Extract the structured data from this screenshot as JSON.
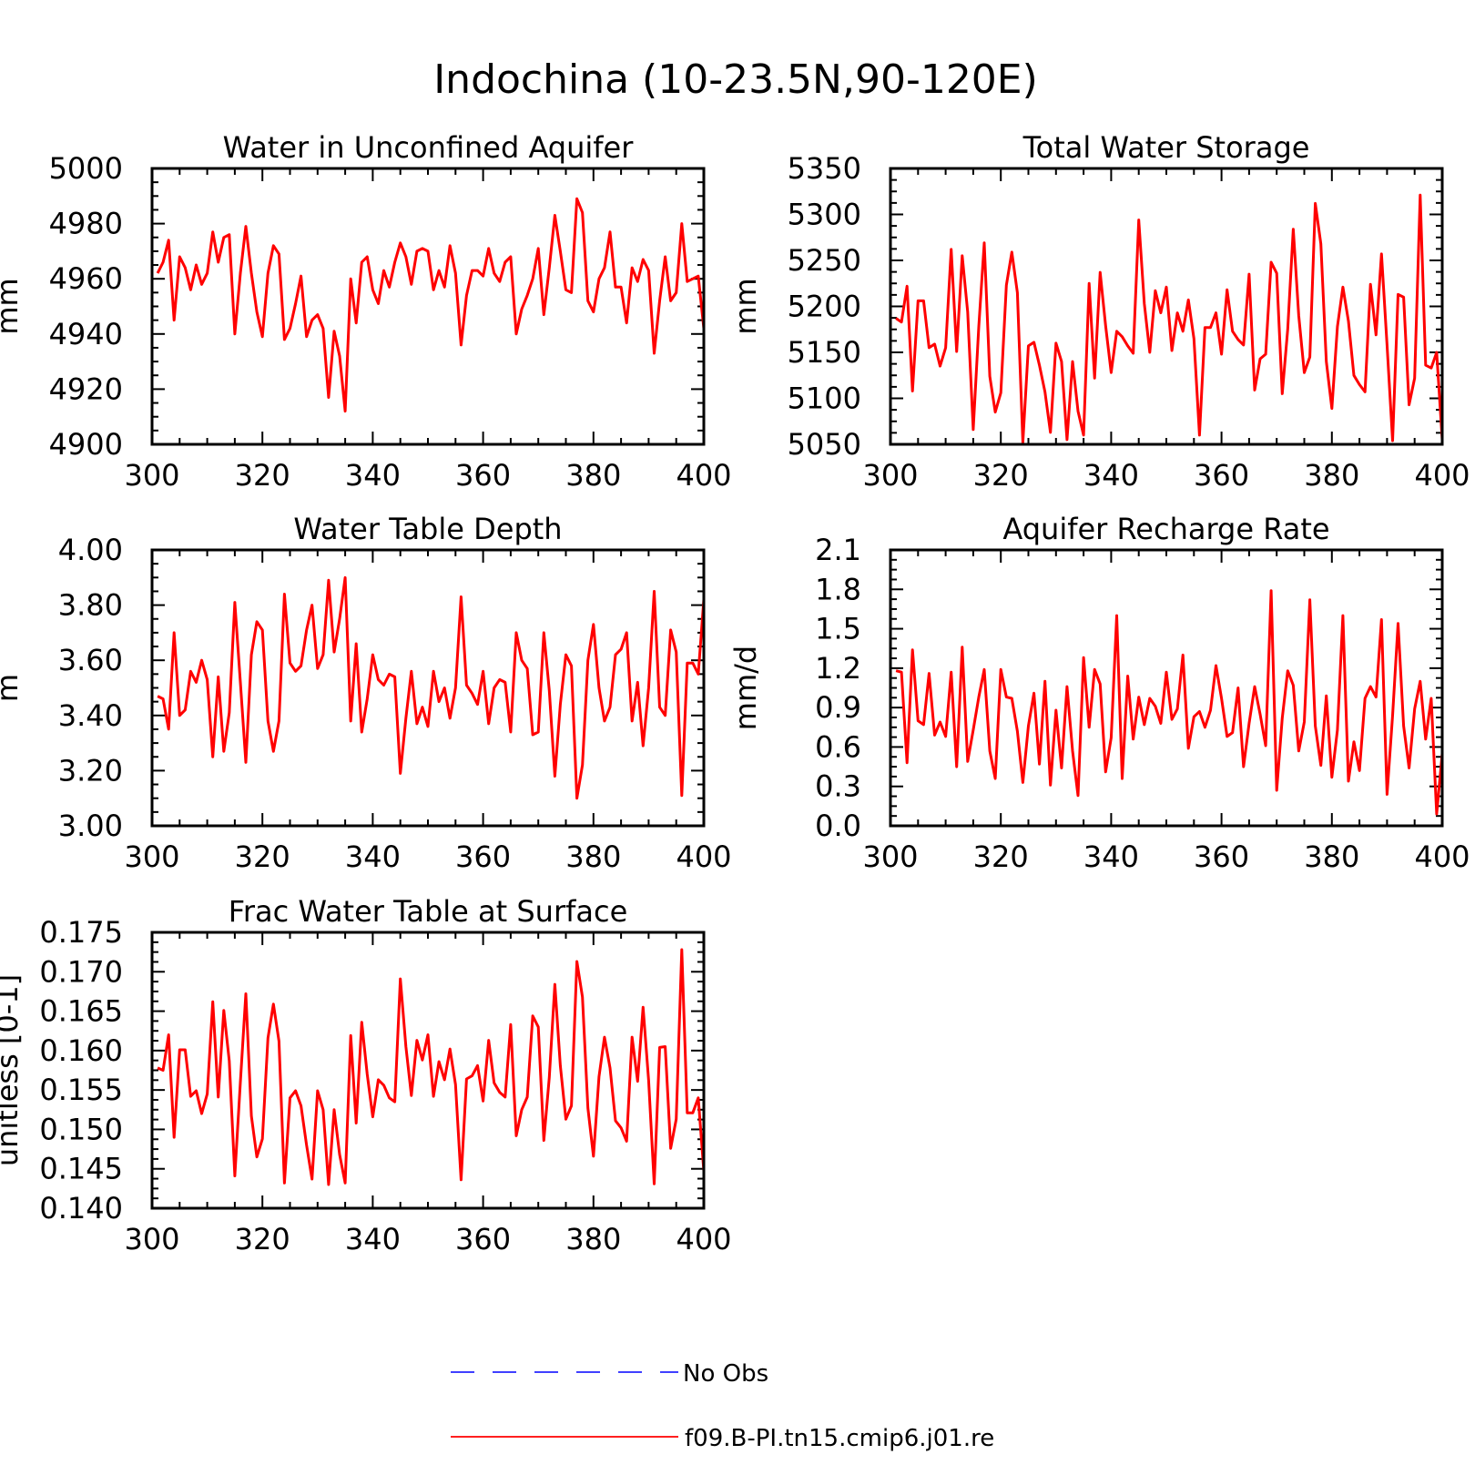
{
  "figure": {
    "title": "Indochina (10-23.5N,90-120E)"
  },
  "legend": {
    "entries": [
      {
        "label": "No Obs",
        "color": "#0000ff",
        "style": "dashed"
      },
      {
        "label": "f09.B-PI.tn15.cmip6.j01.re",
        "color": "#ff0000",
        "style": "solid"
      }
    ]
  },
  "chart_data": [
    {
      "type": "line",
      "title": "Water in Unconfined Aquifer",
      "xlabel": "",
      "ylabel": "mm",
      "xlim": [
        300,
        400
      ],
      "ylim": [
        4900,
        5000
      ],
      "xticks": [
        "300",
        "320",
        "340",
        "360",
        "380",
        "400"
      ],
      "yticks": [
        "4900",
        "4920",
        "4940",
        "4960",
        "4980",
        "5000"
      ],
      "x": [
        301,
        302,
        303,
        304,
        305,
        306,
        307,
        308,
        309,
        310,
        311,
        312,
        313,
        314,
        315,
        316,
        317,
        318,
        319,
        320,
        321,
        322,
        323,
        324,
        325,
        326,
        327,
        328,
        329,
        330,
        331,
        332,
        333,
        334,
        335,
        336,
        337,
        338,
        339,
        340,
        341,
        342,
        343,
        344,
        345,
        346,
        347,
        348,
        349,
        350,
        351,
        352,
        353,
        354,
        355,
        356,
        357,
        358,
        359,
        360,
        361,
        362,
        363,
        364,
        365,
        366,
        367,
        368,
        369,
        370,
        371,
        372,
        373,
        374,
        375,
        376,
        377,
        378,
        379,
        380,
        381,
        382,
        383,
        384,
        385,
        386,
        387,
        388,
        389,
        390,
        391,
        392,
        393,
        394,
        395,
        396,
        397,
        398,
        399,
        400
      ],
      "series": [
        {
          "name": "f09.B-PI.tn15.cmip6.j01.re",
          "color": "#ff0000",
          "values": [
            4962,
            4966,
            4974,
            4945,
            4968,
            4964,
            4956,
            4965,
            4958,
            4962,
            4977,
            4966,
            4975,
            4976,
            4940,
            4962,
            4979,
            4962,
            4948,
            4939,
            4962,
            4972,
            4969,
            4938,
            4942,
            4951,
            4961,
            4939,
            4945,
            4947,
            4942,
            4917,
            4941,
            4932,
            4912,
            4960,
            4944,
            4966,
            4968,
            4956,
            4951,
            4963,
            4957,
            4966,
            4973,
            4968,
            4958,
            4970,
            4971,
            4970,
            4956,
            4963,
            4957,
            4972,
            4962,
            4936,
            4954,
            4963,
            4963,
            4961,
            4971,
            4962,
            4959,
            4966,
            4968,
            4940,
            4949,
            4954,
            4960,
            4971,
            4947,
            4964,
            4983,
            4970,
            4956,
            4955,
            4989,
            4984,
            4952,
            4948,
            4960,
            4964,
            4977,
            4957,
            4957,
            4944,
            4964,
            4959,
            4967,
            4963,
            4933,
            4952,
            4968,
            4952,
            4955,
            4980,
            4959,
            4960,
            4961,
            4942
          ]
        }
      ]
    },
    {
      "type": "line",
      "title": "Total Water Storage",
      "xlabel": "",
      "ylabel": "mm",
      "xlim": [
        300,
        400
      ],
      "ylim": [
        5050,
        5350
      ],
      "xticks": [
        "300",
        "320",
        "340",
        "360",
        "380",
        "400"
      ],
      "yticks": [
        "5050",
        "5100",
        "5150",
        "5200",
        "5250",
        "5300",
        "5350"
      ],
      "x": [
        301,
        302,
        303,
        304,
        305,
        306,
        307,
        308,
        309,
        310,
        311,
        312,
        313,
        314,
        315,
        316,
        317,
        318,
        319,
        320,
        321,
        322,
        323,
        324,
        325,
        326,
        327,
        328,
        329,
        330,
        331,
        332,
        333,
        334,
        335,
        336,
        337,
        338,
        339,
        340,
        341,
        342,
        343,
        344,
        345,
        346,
        347,
        348,
        349,
        350,
        351,
        352,
        353,
        354,
        355,
        356,
        357,
        358,
        359,
        360,
        361,
        362,
        363,
        364,
        365,
        366,
        367,
        368,
        369,
        370,
        371,
        372,
        373,
        374,
        375,
        376,
        377,
        378,
        379,
        380,
        381,
        382,
        383,
        384,
        385,
        386,
        387,
        388,
        389,
        390,
        391,
        392,
        393,
        394,
        395,
        396,
        397,
        398,
        399,
        400
      ],
      "series": [
        {
          "name": "f09.B-PI.tn15.cmip6.j01.re",
          "color": "#ff0000",
          "values": [
            5187,
            5183,
            5222,
            5108,
            5206,
            5206,
            5155,
            5159,
            5135,
            5155,
            5262,
            5151,
            5255,
            5194,
            5066,
            5178,
            5269,
            5124,
            5085,
            5106,
            5223,
            5259,
            5215,
            5052,
            5157,
            5161,
            5136,
            5107,
            5063,
            5160,
            5140,
            5055,
            5140,
            5086,
            5060,
            5225,
            5122,
            5237,
            5179,
            5128,
            5173,
            5167,
            5157,
            5149,
            5294,
            5203,
            5150,
            5217,
            5193,
            5221,
            5152,
            5193,
            5173,
            5207,
            5165,
            5060,
            5177,
            5177,
            5193,
            5148,
            5218,
            5173,
            5164,
            5158,
            5235,
            5109,
            5143,
            5148,
            5248,
            5236,
            5105,
            5175,
            5284,
            5190,
            5128,
            5145,
            5312,
            5268,
            5140,
            5089,
            5178,
            5221,
            5184,
            5125,
            5115,
            5107,
            5224,
            5169,
            5257,
            5158,
            5054,
            5213,
            5210,
            5093,
            5122,
            5321,
            5136,
            5133,
            5150,
            5055
          ]
        }
      ]
    },
    {
      "type": "line",
      "title": "Water Table Depth",
      "xlabel": "",
      "ylabel": "m",
      "xlim": [
        300,
        400
      ],
      "ylim": [
        3.0,
        4.0
      ],
      "xticks": [
        "300",
        "320",
        "340",
        "360",
        "380",
        "400"
      ],
      "yticks": [
        "3.00",
        "3.20",
        "3.40",
        "3.60",
        "3.80",
        "4.00"
      ],
      "x": [
        301,
        302,
        303,
        304,
        305,
        306,
        307,
        308,
        309,
        310,
        311,
        312,
        313,
        314,
        315,
        316,
        317,
        318,
        319,
        320,
        321,
        322,
        323,
        324,
        325,
        326,
        327,
        328,
        329,
        330,
        331,
        332,
        333,
        334,
        335,
        336,
        337,
        338,
        339,
        340,
        341,
        342,
        343,
        344,
        345,
        346,
        347,
        348,
        349,
        350,
        351,
        352,
        353,
        354,
        355,
        356,
        357,
        358,
        359,
        360,
        361,
        362,
        363,
        364,
        365,
        366,
        367,
        368,
        369,
        370,
        371,
        372,
        373,
        374,
        375,
        376,
        377,
        378,
        379,
        380,
        381,
        382,
        383,
        384,
        385,
        386,
        387,
        388,
        389,
        390,
        391,
        392,
        393,
        394,
        395,
        396,
        397,
        398,
        399,
        400
      ],
      "series": [
        {
          "name": "f09.B-PI.tn15.cmip6.j01.re",
          "color": "#ff0000",
          "values": [
            3.47,
            3.46,
            3.35,
            3.7,
            3.4,
            3.42,
            3.56,
            3.52,
            3.6,
            3.53,
            3.25,
            3.54,
            3.27,
            3.41,
            3.81,
            3.52,
            3.23,
            3.62,
            3.74,
            3.71,
            3.38,
            3.27,
            3.38,
            3.84,
            3.59,
            3.56,
            3.58,
            3.71,
            3.8,
            3.57,
            3.62,
            3.89,
            3.63,
            3.75,
            3.9,
            3.38,
            3.66,
            3.34,
            3.46,
            3.62,
            3.53,
            3.51,
            3.55,
            3.54,
            3.19,
            3.39,
            3.56,
            3.37,
            3.43,
            3.36,
            3.56,
            3.45,
            3.5,
            3.39,
            3.5,
            3.83,
            3.51,
            3.48,
            3.44,
            3.56,
            3.37,
            3.5,
            3.53,
            3.52,
            3.34,
            3.7,
            3.6,
            3.57,
            3.33,
            3.34,
            3.7,
            3.49,
            3.18,
            3.44,
            3.62,
            3.58,
            3.1,
            3.22,
            3.6,
            3.73,
            3.5,
            3.38,
            3.43,
            3.62,
            3.64,
            3.7,
            3.38,
            3.52,
            3.29,
            3.5,
            3.85,
            3.43,
            3.4,
            3.71,
            3.63,
            3.11,
            3.59,
            3.59,
            3.55,
            3.82
          ]
        }
      ]
    },
    {
      "type": "line",
      "title": "Aquifer Recharge Rate",
      "xlabel": "",
      "ylabel": "mm/d",
      "xlim": [
        300,
        400
      ],
      "ylim": [
        0.0,
        2.1
      ],
      "xticks": [
        "300",
        "320",
        "340",
        "360",
        "380",
        "400"
      ],
      "yticks": [
        "0.0",
        "0.3",
        "0.6",
        "0.9",
        "1.2",
        "1.5",
        "1.8",
        "2.1"
      ],
      "x": [
        301,
        302,
        303,
        304,
        305,
        306,
        307,
        308,
        309,
        310,
        311,
        312,
        313,
        314,
        315,
        316,
        317,
        318,
        319,
        320,
        321,
        322,
        323,
        324,
        325,
        326,
        327,
        328,
        329,
        330,
        331,
        332,
        333,
        334,
        335,
        336,
        337,
        338,
        339,
        340,
        341,
        342,
        343,
        344,
        345,
        346,
        347,
        348,
        349,
        350,
        351,
        352,
        353,
        354,
        355,
        356,
        357,
        358,
        359,
        360,
        361,
        362,
        363,
        364,
        365,
        366,
        367,
        368,
        369,
        370,
        371,
        372,
        373,
        374,
        375,
        376,
        377,
        378,
        379,
        380,
        381,
        382,
        383,
        384,
        385,
        386,
        387,
        388,
        389,
        390,
        391,
        392,
        393,
        394,
        395,
        396,
        397,
        398,
        399,
        400
      ],
      "series": [
        {
          "name": "f09.B-PI.tn15.cmip6.j01.re",
          "color": "#ff0000",
          "values": [
            1.18,
            1.17,
            0.48,
            1.34,
            0.8,
            0.77,
            1.16,
            0.69,
            0.79,
            0.68,
            1.17,
            0.45,
            1.36,
            0.49,
            0.73,
            0.98,
            1.19,
            0.57,
            0.36,
            1.19,
            0.98,
            0.97,
            0.72,
            0.33,
            0.76,
            1.01,
            0.47,
            1.1,
            0.31,
            0.88,
            0.44,
            1.06,
            0.57,
            0.23,
            1.28,
            0.75,
            1.19,
            1.08,
            0.41,
            0.67,
            1.6,
            0.36,
            1.14,
            0.66,
            0.98,
            0.77,
            0.97,
            0.91,
            0.78,
            1.17,
            0.81,
            0.89,
            1.3,
            0.59,
            0.83,
            0.87,
            0.75,
            0.88,
            1.22,
            0.97,
            0.68,
            0.71,
            1.05,
            0.45,
            0.78,
            1.06,
            0.85,
            0.61,
            1.79,
            0.27,
            0.82,
            1.18,
            1.07,
            0.57,
            0.79,
            1.72,
            0.76,
            0.46,
            0.99,
            0.37,
            0.73,
            1.6,
            0.34,
            0.64,
            0.42,
            0.97,
            1.06,
            0.98,
            1.57,
            0.24,
            0.84,
            1.54,
            0.76,
            0.44,
            0.89,
            1.1,
            0.66,
            0.97,
            0.09,
            0.55
          ]
        }
      ]
    },
    {
      "type": "line",
      "title": "Frac Water Table at Surface",
      "xlabel": "",
      "ylabel": "unitless [0-1]",
      "xlim": [
        300,
        400
      ],
      "ylim": [
        0.14,
        0.175
      ],
      "xticks": [
        "300",
        "320",
        "340",
        "360",
        "380",
        "400"
      ],
      "yticks": [
        "0.140",
        "0.145",
        "0.150",
        "0.155",
        "0.160",
        "0.165",
        "0.170",
        "0.175"
      ],
      "x": [
        301,
        302,
        303,
        304,
        305,
        306,
        307,
        308,
        309,
        310,
        311,
        312,
        313,
        314,
        315,
        316,
        317,
        318,
        319,
        320,
        321,
        322,
        323,
        324,
        325,
        326,
        327,
        328,
        329,
        330,
        331,
        332,
        333,
        334,
        335,
        336,
        337,
        338,
        339,
        340,
        341,
        342,
        343,
        344,
        345,
        346,
        347,
        348,
        349,
        350,
        351,
        352,
        353,
        354,
        355,
        356,
        357,
        358,
        359,
        360,
        361,
        362,
        363,
        364,
        365,
        366,
        367,
        368,
        369,
        370,
        371,
        372,
        373,
        374,
        375,
        376,
        377,
        378,
        379,
        380,
        381,
        382,
        383,
        384,
        385,
        386,
        387,
        388,
        389,
        390,
        391,
        392,
        393,
        394,
        395,
        396,
        397,
        398,
        399,
        400
      ],
      "series": [
        {
          "name": "f09.B-PI.tn15.cmip6.j01.re",
          "color": "#ff0000",
          "values": [
            0.1578,
            0.1575,
            0.162,
            0.149,
            0.1601,
            0.1601,
            0.1542,
            0.1549,
            0.152,
            0.1545,
            0.1662,
            0.1541,
            0.1651,
            0.1587,
            0.1441,
            0.156,
            0.1672,
            0.1517,
            0.1465,
            0.1488,
            0.1616,
            0.1659,
            0.1612,
            0.1432,
            0.154,
            0.1549,
            0.153,
            0.148,
            0.1437,
            0.1549,
            0.1525,
            0.143,
            0.1525,
            0.1468,
            0.1432,
            0.1619,
            0.1508,
            0.1636,
            0.157,
            0.1516,
            0.1563,
            0.1556,
            0.154,
            0.1535,
            0.1691,
            0.1605,
            0.1543,
            0.1613,
            0.1588,
            0.162,
            0.1542,
            0.1586,
            0.1563,
            0.1602,
            0.1557,
            0.1436,
            0.1564,
            0.1568,
            0.1581,
            0.1536,
            0.1613,
            0.1559,
            0.1547,
            0.1541,
            0.1633,
            0.1492,
            0.1525,
            0.1541,
            0.1644,
            0.163,
            0.1486,
            0.1566,
            0.1684,
            0.1581,
            0.1513,
            0.153,
            0.1713,
            0.1668,
            0.1527,
            0.1466,
            0.1567,
            0.1617,
            0.1578,
            0.1511,
            0.1502,
            0.1485,
            0.1617,
            0.1561,
            0.1655,
            0.1562,
            0.1431,
            0.1604,
            0.1605,
            0.1476,
            0.1513,
            0.1728,
            0.1521,
            0.1521,
            0.154,
            0.1447
          ]
        }
      ]
    }
  ]
}
